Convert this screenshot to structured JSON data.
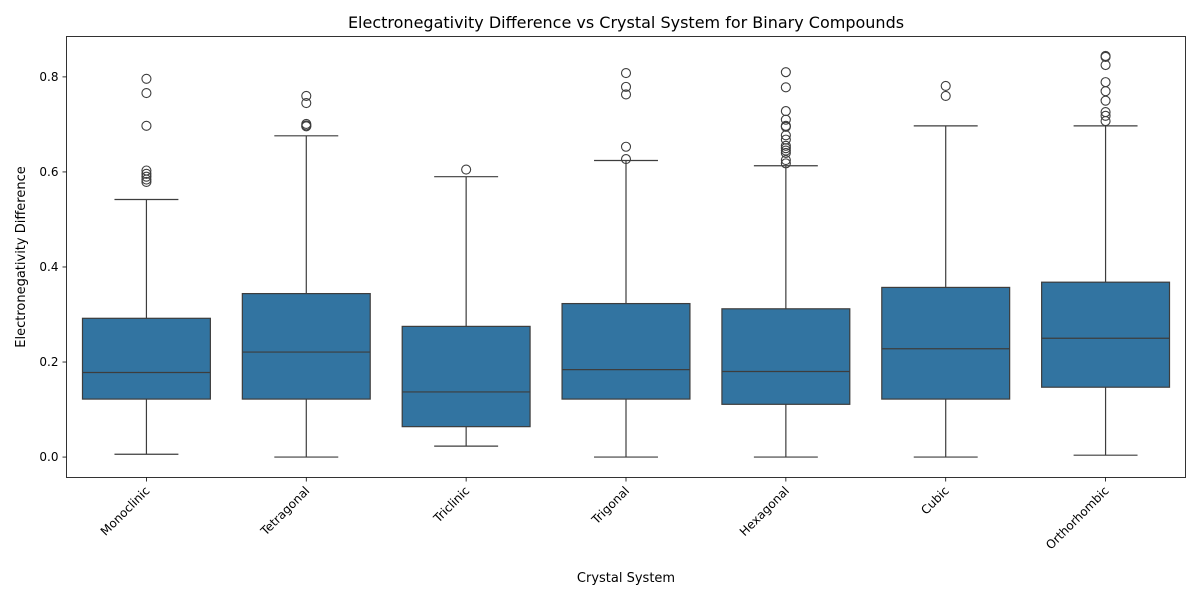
{
  "chart_data": {
    "type": "box",
    "title": "Electronegativity Difference vs Crystal System for Binary Compounds",
    "xlabel": "Crystal System",
    "ylabel": "Electronegativity Difference",
    "ylim": [
      -0.043,
      0.885
    ],
    "yticks": [
      0.0,
      0.2,
      0.4,
      0.6,
      0.8
    ],
    "ytick_labels": [
      "0.0",
      "0.2",
      "0.4",
      "0.6",
      "0.8"
    ],
    "x_tick_rotation_deg": 45,
    "grid": false,
    "box_color": "#3274a1",
    "line_color": "#3d3d3d",
    "categories": [
      "Monoclinic",
      "Tetragonal",
      "Triclinic",
      "Trigonal",
      "Hexagonal",
      "Cubic",
      "Orthorhombic"
    ],
    "boxes": [
      {
        "category": "Monoclinic",
        "whisker_low": 0.006,
        "q1": 0.122,
        "median": 0.178,
        "q3": 0.292,
        "whisker_high": 0.542,
        "outliers": [
          0.796,
          0.766,
          0.697,
          0.603,
          0.596,
          0.59,
          0.584,
          0.579
        ]
      },
      {
        "category": "Tetragonal",
        "whisker_low": 0.0,
        "q1": 0.122,
        "median": 0.221,
        "q3": 0.344,
        "whisker_high": 0.676,
        "outliers": [
          0.76,
          0.745,
          0.701,
          0.698,
          0.696
        ]
      },
      {
        "category": "Triclinic",
        "whisker_low": 0.023,
        "q1": 0.064,
        "median": 0.137,
        "q3": 0.275,
        "whisker_high": 0.59,
        "outliers": [
          0.605
        ]
      },
      {
        "category": "Trigonal",
        "whisker_low": 0.0,
        "q1": 0.122,
        "median": 0.184,
        "q3": 0.323,
        "whisker_high": 0.624,
        "outliers": [
          0.808,
          0.779,
          0.763,
          0.653,
          0.627
        ]
      },
      {
        "category": "Hexagonal",
        "whisker_low": 0.0,
        "q1": 0.111,
        "median": 0.18,
        "q3": 0.312,
        "whisker_high": 0.613,
        "outliers": [
          0.81,
          0.778,
          0.728,
          0.71,
          0.697,
          0.695,
          0.677,
          0.668,
          0.655,
          0.65,
          0.645,
          0.64,
          0.625,
          0.618
        ]
      },
      {
        "category": "Cubic",
        "whisker_low": 0.0,
        "q1": 0.122,
        "median": 0.228,
        "q3": 0.357,
        "whisker_high": 0.697,
        "outliers": [
          0.781,
          0.76
        ]
      },
      {
        "category": "Orthorhombic",
        "whisker_low": 0.004,
        "q1": 0.147,
        "median": 0.25,
        "q3": 0.368,
        "whisker_high": 0.697,
        "outliers": [
          0.844,
          0.842,
          0.825,
          0.789,
          0.77,
          0.75,
          0.726,
          0.718,
          0.707
        ]
      }
    ]
  }
}
